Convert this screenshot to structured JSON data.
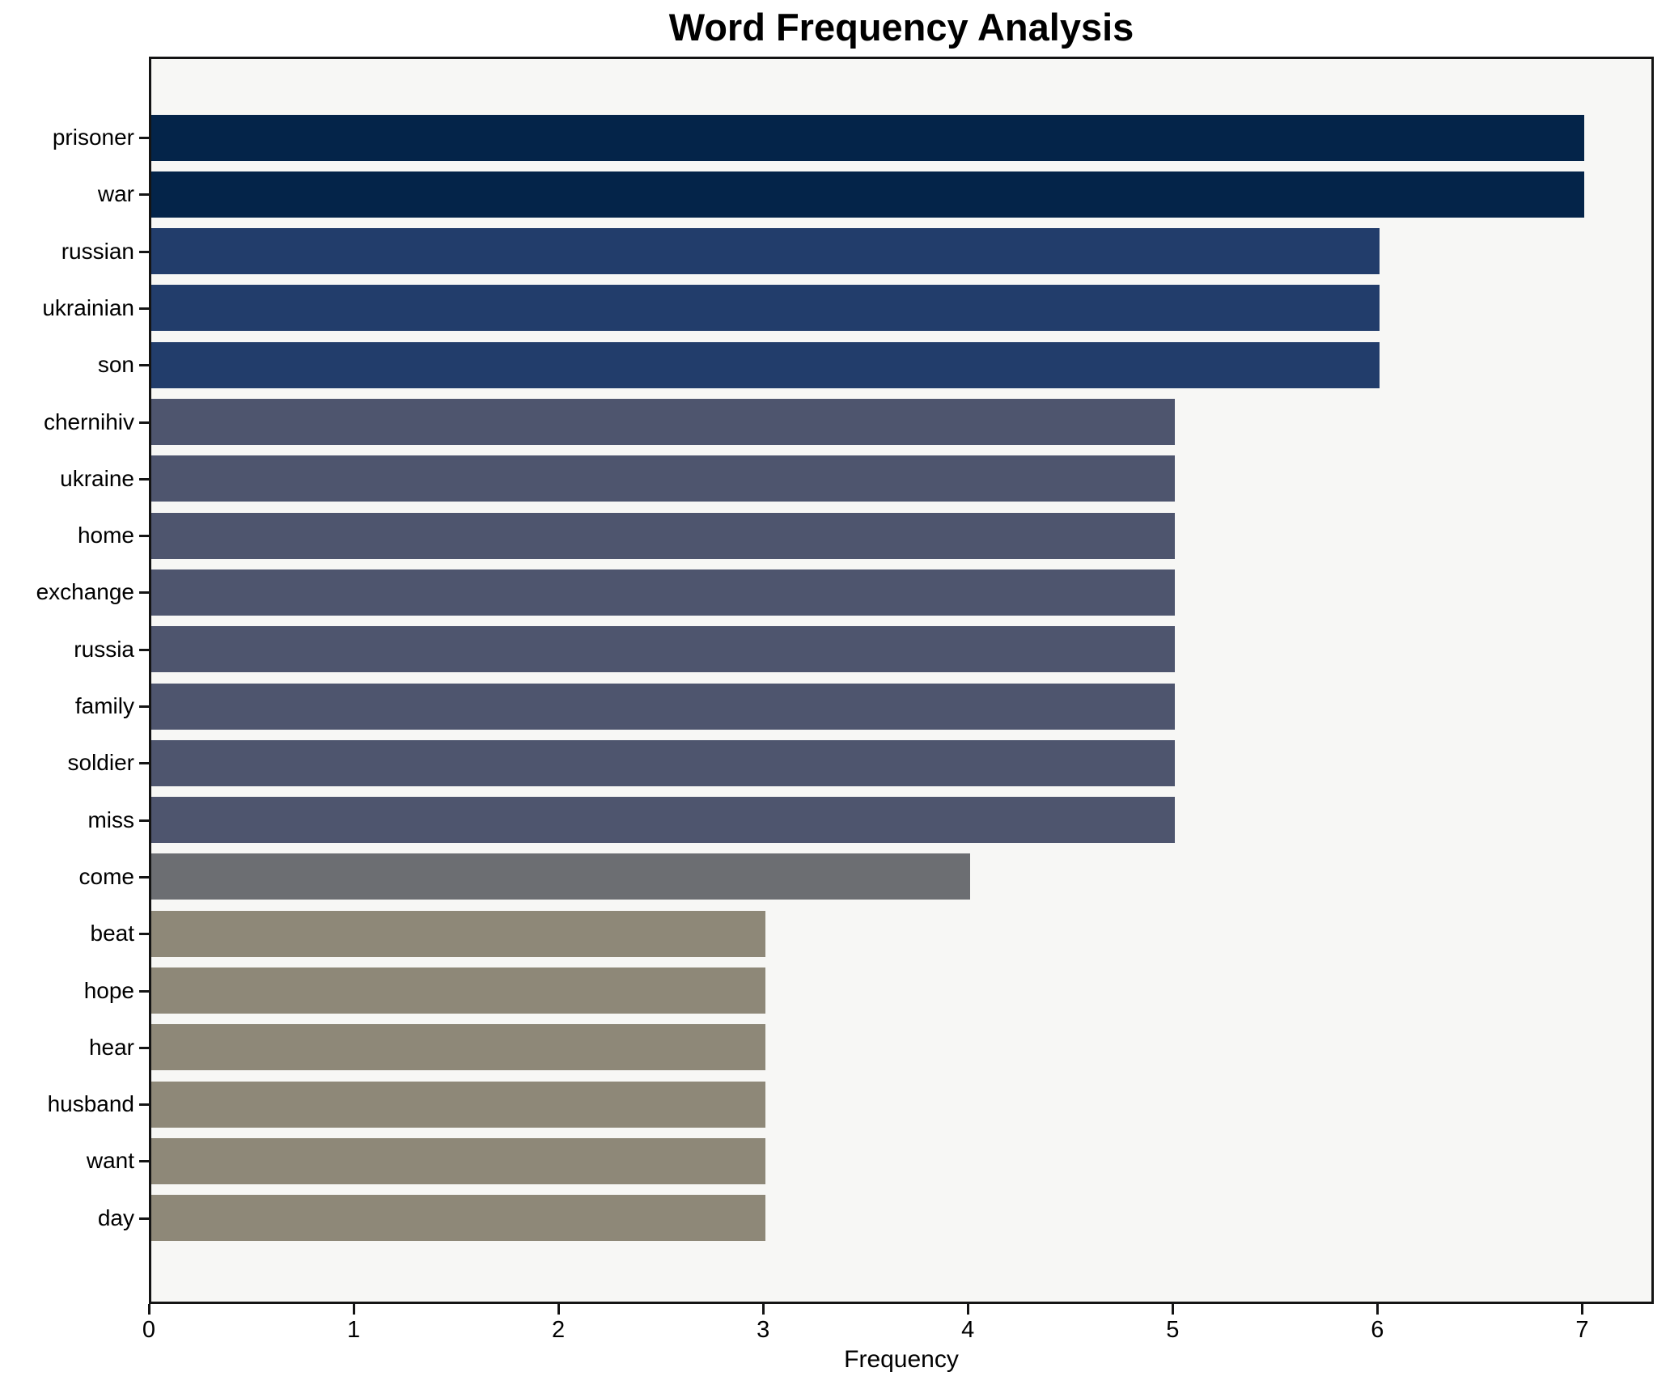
{
  "chart_data": {
    "type": "bar",
    "orientation": "horizontal",
    "title": "Word Frequency Analysis",
    "xlabel": "Frequency",
    "ylabel": "",
    "categories": [
      "prisoner",
      "war",
      "russian",
      "ukrainian",
      "son",
      "chernihiv",
      "ukraine",
      "home",
      "exchange",
      "russia",
      "family",
      "soldier",
      "miss",
      "come",
      "beat",
      "hope",
      "hear",
      "husband",
      "want",
      "day"
    ],
    "values": [
      7,
      7,
      6,
      6,
      6,
      5,
      5,
      5,
      5,
      5,
      5,
      5,
      5,
      4,
      3,
      3,
      3,
      3,
      3,
      3
    ],
    "xlim": [
      0,
      7.35
    ],
    "xticks": [
      0,
      1,
      2,
      3,
      4,
      5,
      6,
      7
    ],
    "grid": false,
    "legend_position": "none",
    "bar_colors_by_value": {
      "3": "#8e8878",
      "4": "#6c6e72",
      "5": "#4e556e",
      "6": "#223d6b",
      "7": "#042449"
    },
    "plot_background": "#f7f7f5",
    "figure_background": "#ffffff",
    "spine_color": "#141414",
    "text_color": "#000000"
  }
}
